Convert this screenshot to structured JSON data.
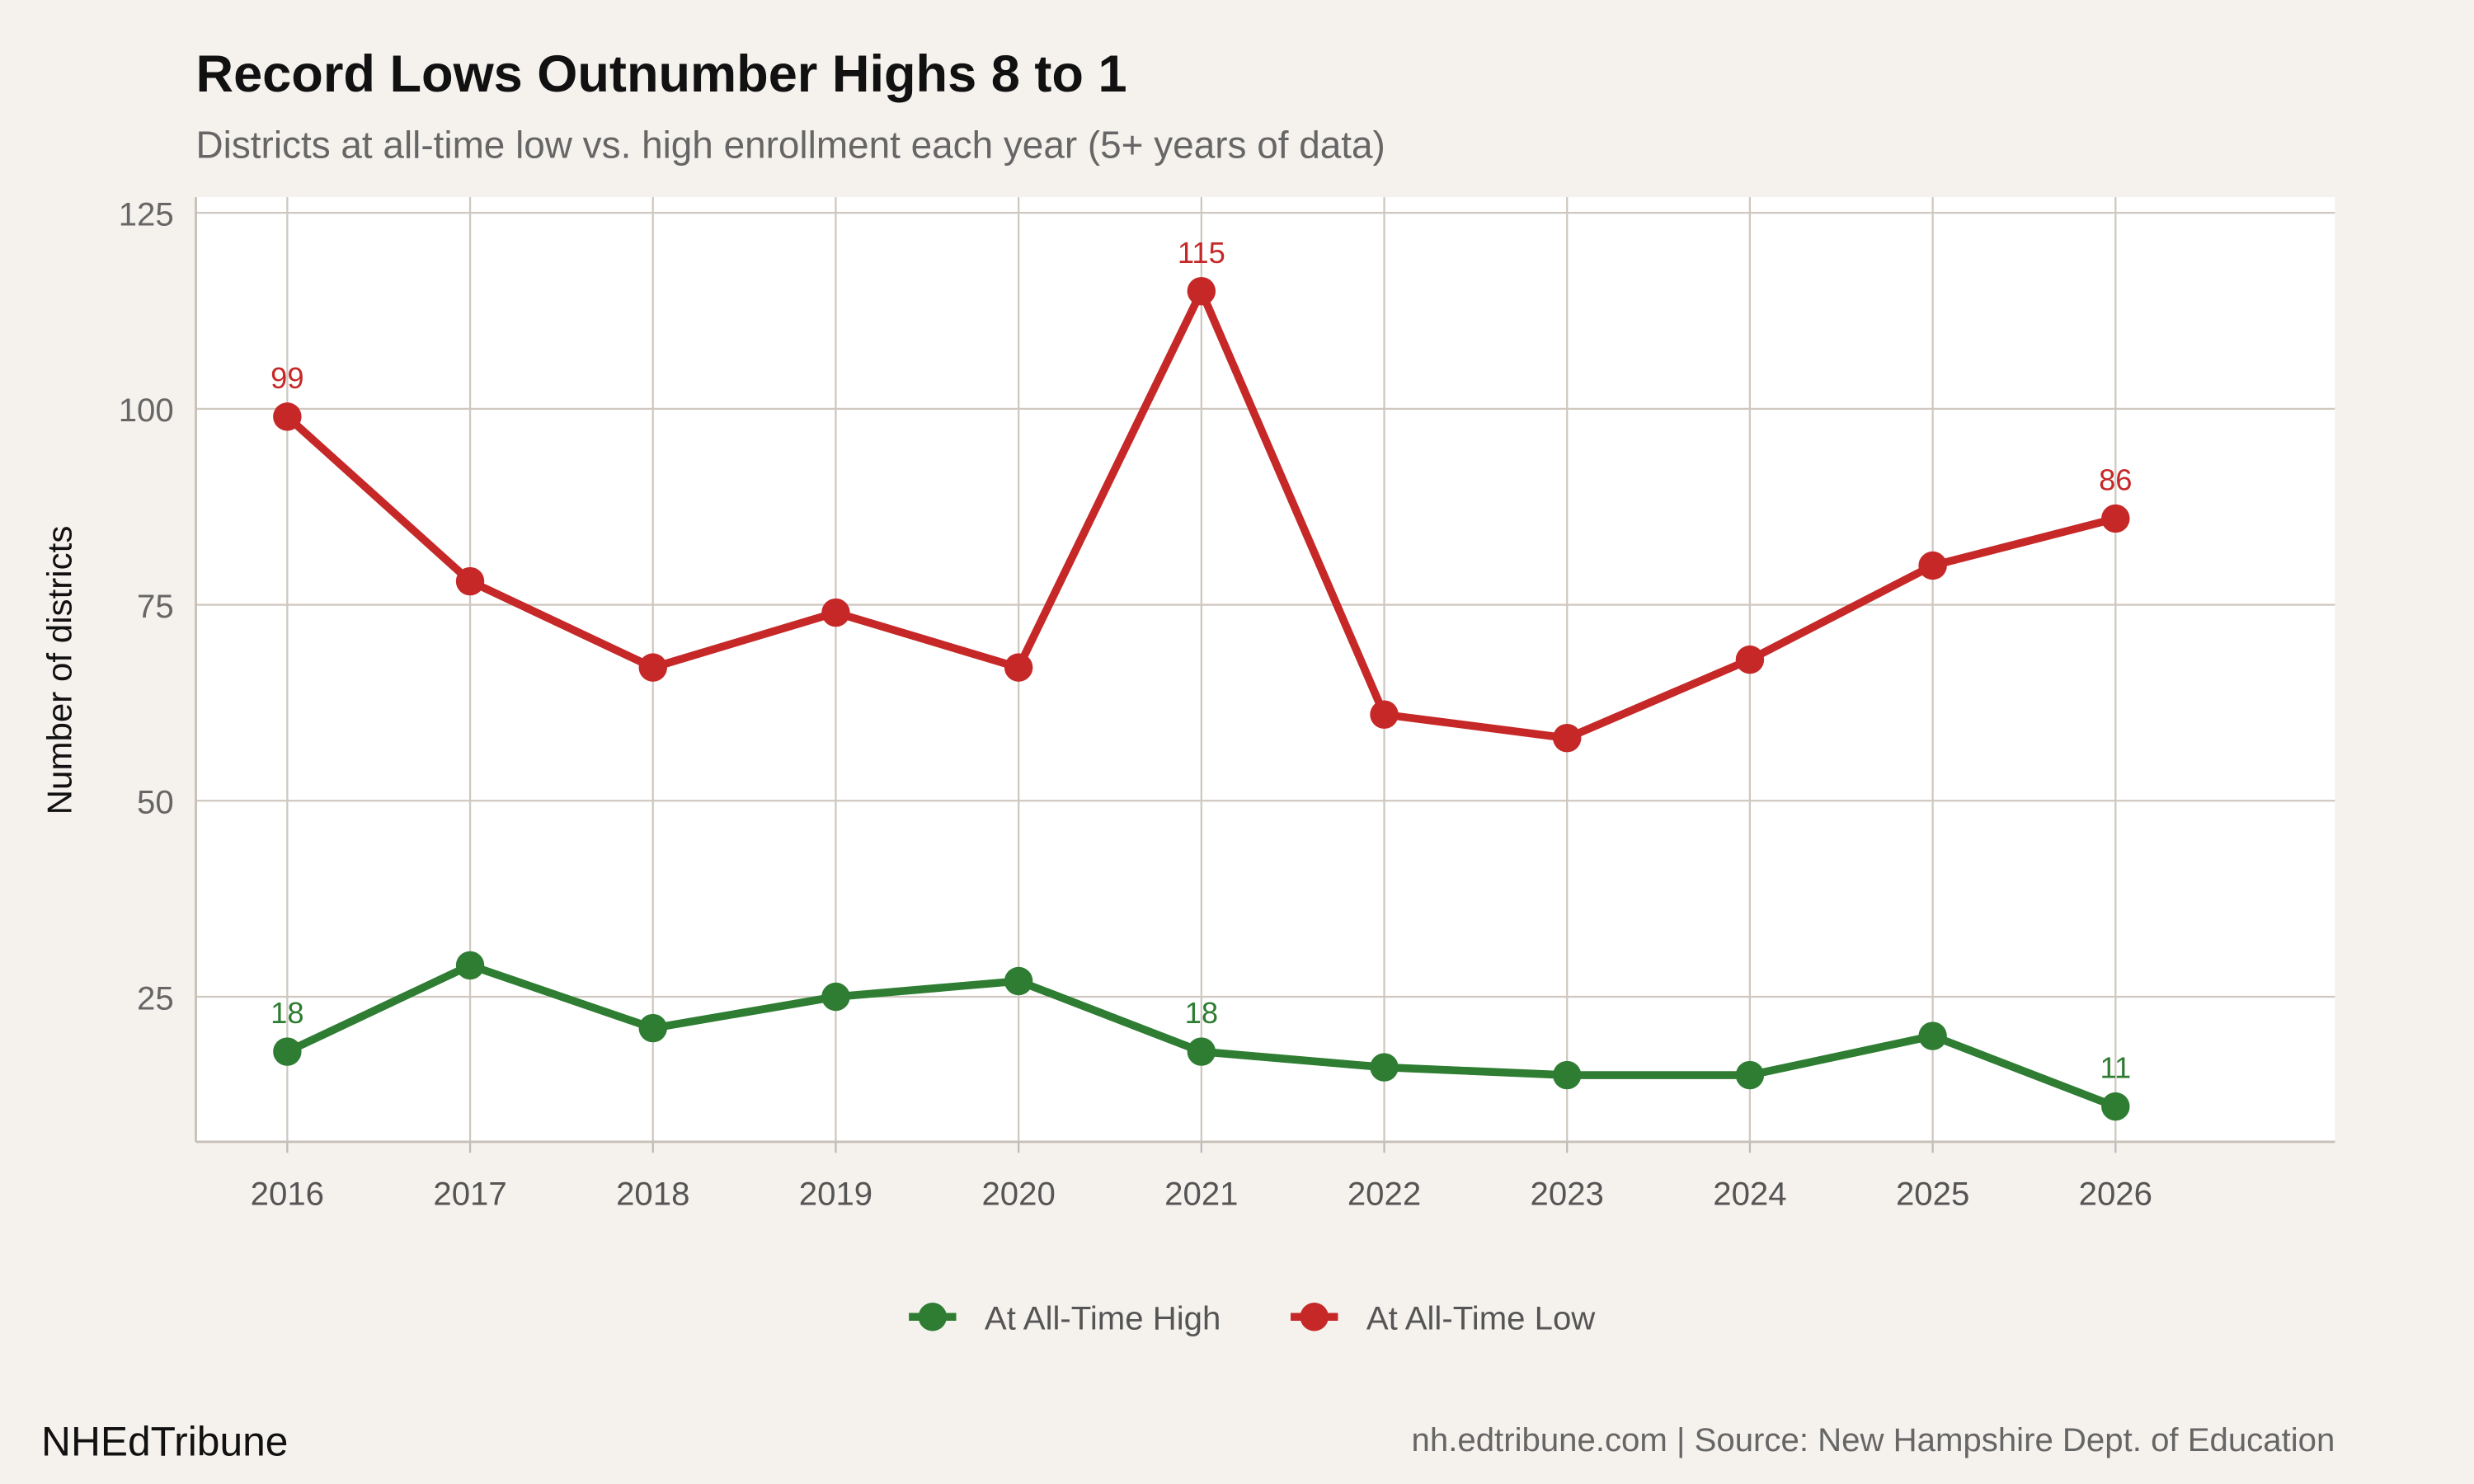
{
  "chart_data": {
    "type": "line",
    "title": "Record Lows Outnumber Highs 8 to 1",
    "subtitle": "Districts at all-time low vs. high enrollment each year (5+ years of data)",
    "xlabel": "",
    "ylabel": "Number of districts",
    "x": [
      2016,
      2017,
      2018,
      2019,
      2020,
      2021,
      2022,
      2023,
      2024,
      2025,
      2026
    ],
    "xticks": [
      "2016",
      "2017",
      "2018",
      "2019",
      "2020",
      "2021",
      "2022",
      "2023",
      "2024",
      "2025",
      "2026"
    ],
    "yticks": [
      25,
      50,
      75,
      100,
      125
    ],
    "ylim": [
      6.5,
      127
    ],
    "xlim": [
      2015.5,
      2027.2
    ],
    "grid": true,
    "legend_position": "bottom",
    "series": [
      {
        "name": "At All-Time High",
        "color": "#2e7d32",
        "values": [
          18,
          29,
          21,
          25,
          27,
          18,
          16,
          15,
          15,
          20,
          11
        ],
        "labels": {
          "2016": "18",
          "2021": "18",
          "2026": "11"
        }
      },
      {
        "name": "At All-Time Low",
        "color": "#c62828",
        "values": [
          99,
          78,
          67,
          74,
          67,
          115,
          61,
          58,
          68,
          80,
          86
        ],
        "labels": {
          "2016": "99",
          "2021": "115",
          "2026": "86"
        }
      }
    ]
  },
  "footer": {
    "brand": "NHEdTribune",
    "source": "nh.edtribune.com | Source: New Hampshire Dept. of Education"
  }
}
